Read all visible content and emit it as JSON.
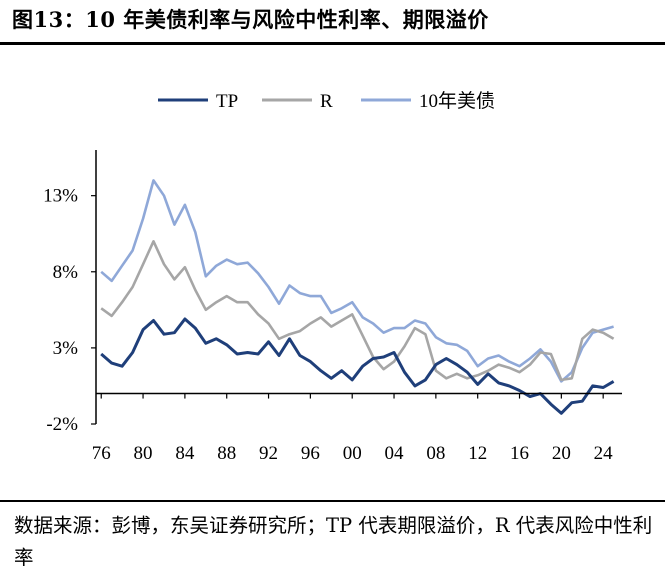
{
  "header": {
    "title": "图13：10 年美债利率与风险中性利率、期限溢价"
  },
  "footer": {
    "source": "数据来源：彭博，东吴证券研究所；TP 代表期限溢价，R 代表风险中性利率"
  },
  "colors": {
    "tp": "#1f3f7a",
    "r": "#a6a6a6",
    "ust10": "#8fa8d8",
    "axis": "#000000"
  },
  "chart_data": {
    "type": "line",
    "ylim": [
      -2,
      16
    ],
    "xlim": [
      1975.5,
      2025.8
    ],
    "y_ticks": [
      {
        "value": -2,
        "label": "-2%"
      },
      {
        "value": 3,
        "label": "3%"
      },
      {
        "value": 8,
        "label": "8%"
      },
      {
        "value": 13,
        "label": "13%"
      }
    ],
    "x_ticks": [
      {
        "value": 1976,
        "label": "76"
      },
      {
        "value": 1980,
        "label": "80"
      },
      {
        "value": 1984,
        "label": "84"
      },
      {
        "value": 1988,
        "label": "88"
      },
      {
        "value": 1992,
        "label": "92"
      },
      {
        "value": 1996,
        "label": "96"
      },
      {
        "value": 2000,
        "label": "00"
      },
      {
        "value": 2004,
        "label": "04"
      },
      {
        "value": 2008,
        "label": "08"
      },
      {
        "value": 2012,
        "label": "12"
      },
      {
        "value": 2016,
        "label": "16"
      },
      {
        "value": 2020,
        "label": "20"
      },
      {
        "value": 2024,
        "label": "24"
      }
    ],
    "legend_position": "top",
    "x_unit": "year",
    "series": [
      {
        "key": "tp",
        "name": "TP",
        "points": [
          [
            1976,
            2.6
          ],
          [
            1977,
            2.0
          ],
          [
            1978,
            1.8
          ],
          [
            1979,
            2.7
          ],
          [
            1980,
            4.2
          ],
          [
            1981,
            4.8
          ],
          [
            1982,
            3.9
          ],
          [
            1983,
            4.0
          ],
          [
            1984,
            4.9
          ],
          [
            1985,
            4.3
          ],
          [
            1986,
            3.3
          ],
          [
            1987,
            3.6
          ],
          [
            1988,
            3.2
          ],
          [
            1989,
            2.6
          ],
          [
            1990,
            2.7
          ],
          [
            1991,
            2.6
          ],
          [
            1992,
            3.4
          ],
          [
            1993,
            2.5
          ],
          [
            1994,
            3.6
          ],
          [
            1995,
            2.5
          ],
          [
            1996,
            2.1
          ],
          [
            1997,
            1.5
          ],
          [
            1998,
            1.0
          ],
          [
            1999,
            1.5
          ],
          [
            2000,
            0.9
          ],
          [
            2001,
            1.8
          ],
          [
            2002,
            2.3
          ],
          [
            2003,
            2.4
          ],
          [
            2004,
            2.7
          ],
          [
            2005,
            1.4
          ],
          [
            2006,
            0.5
          ],
          [
            2007,
            0.9
          ],
          [
            2008,
            1.9
          ],
          [
            2009,
            2.3
          ],
          [
            2010,
            1.9
          ],
          [
            2011,
            1.4
          ],
          [
            2012,
            0.6
          ],
          [
            2013,
            1.3
          ],
          [
            2014,
            0.7
          ],
          [
            2015,
            0.5
          ],
          [
            2016,
            0.2
          ],
          [
            2017,
            -0.2
          ],
          [
            2018,
            0.0
          ],
          [
            2019,
            -0.7
          ],
          [
            2020,
            -1.3
          ],
          [
            2021,
            -0.6
          ],
          [
            2022,
            -0.5
          ],
          [
            2023,
            0.5
          ],
          [
            2024,
            0.4
          ],
          [
            2025,
            0.8
          ]
        ]
      },
      {
        "key": "r",
        "name": "R",
        "points": [
          [
            1976,
            5.6
          ],
          [
            1977,
            5.1
          ],
          [
            1978,
            6.0
          ],
          [
            1979,
            7.0
          ],
          [
            1980,
            8.5
          ],
          [
            1981,
            10.0
          ],
          [
            1982,
            8.5
          ],
          [
            1983,
            7.5
          ],
          [
            1984,
            8.3
          ],
          [
            1985,
            6.8
          ],
          [
            1986,
            5.5
          ],
          [
            1987,
            6.0
          ],
          [
            1988,
            6.4
          ],
          [
            1989,
            6.0
          ],
          [
            1990,
            6.0
          ],
          [
            1991,
            5.2
          ],
          [
            1992,
            4.6
          ],
          [
            1993,
            3.6
          ],
          [
            1994,
            3.9
          ],
          [
            1995,
            4.1
          ],
          [
            1996,
            4.6
          ],
          [
            1997,
            5.0
          ],
          [
            1998,
            4.4
          ],
          [
            1999,
            4.8
          ],
          [
            2000,
            5.2
          ],
          [
            2001,
            3.8
          ],
          [
            2002,
            2.4
          ],
          [
            2003,
            1.6
          ],
          [
            2004,
            2.1
          ],
          [
            2005,
            3.1
          ],
          [
            2006,
            4.3
          ],
          [
            2007,
            3.9
          ],
          [
            2008,
            1.5
          ],
          [
            2009,
            1.0
          ],
          [
            2010,
            1.3
          ],
          [
            2011,
            1.0
          ],
          [
            2012,
            1.2
          ],
          [
            2013,
            1.5
          ],
          [
            2014,
            1.9
          ],
          [
            2015,
            1.7
          ],
          [
            2016,
            1.4
          ],
          [
            2017,
            1.9
          ],
          [
            2018,
            2.7
          ],
          [
            2019,
            2.6
          ],
          [
            2020,
            0.9
          ],
          [
            2021,
            1.0
          ],
          [
            2022,
            3.6
          ],
          [
            2023,
            4.2
          ],
          [
            2024,
            4.0
          ],
          [
            2025,
            3.6
          ]
        ]
      },
      {
        "key": "ust10",
        "name": "10年美债",
        "points": [
          [
            1976,
            8.0
          ],
          [
            1977,
            7.4
          ],
          [
            1978,
            8.4
          ],
          [
            1979,
            9.4
          ],
          [
            1980,
            11.5
          ],
          [
            1981,
            14.0
          ],
          [
            1982,
            13.0
          ],
          [
            1983,
            11.1
          ],
          [
            1984,
            12.4
          ],
          [
            1985,
            10.6
          ],
          [
            1986,
            7.7
          ],
          [
            1987,
            8.4
          ],
          [
            1988,
            8.8
          ],
          [
            1989,
            8.5
          ],
          [
            1990,
            8.6
          ],
          [
            1991,
            7.9
          ],
          [
            1992,
            7.0
          ],
          [
            1993,
            5.9
          ],
          [
            1994,
            7.1
          ],
          [
            1995,
            6.6
          ],
          [
            1996,
            6.4
          ],
          [
            1997,
            6.4
          ],
          [
            1998,
            5.3
          ],
          [
            1999,
            5.6
          ],
          [
            2000,
            6.0
          ],
          [
            2001,
            5.0
          ],
          [
            2002,
            4.6
          ],
          [
            2003,
            4.0
          ],
          [
            2004,
            4.3
          ],
          [
            2005,
            4.3
          ],
          [
            2006,
            4.8
          ],
          [
            2007,
            4.6
          ],
          [
            2008,
            3.7
          ],
          [
            2009,
            3.3
          ],
          [
            2010,
            3.2
          ],
          [
            2011,
            2.8
          ],
          [
            2012,
            1.8
          ],
          [
            2013,
            2.3
          ],
          [
            2014,
            2.5
          ],
          [
            2015,
            2.1
          ],
          [
            2016,
            1.8
          ],
          [
            2017,
            2.3
          ],
          [
            2018,
            2.9
          ],
          [
            2019,
            2.1
          ],
          [
            2020,
            0.8
          ],
          [
            2021,
            1.4
          ],
          [
            2022,
            3.0
          ],
          [
            2023,
            4.0
          ],
          [
            2024,
            4.2
          ],
          [
            2025,
            4.4
          ]
        ]
      }
    ]
  }
}
